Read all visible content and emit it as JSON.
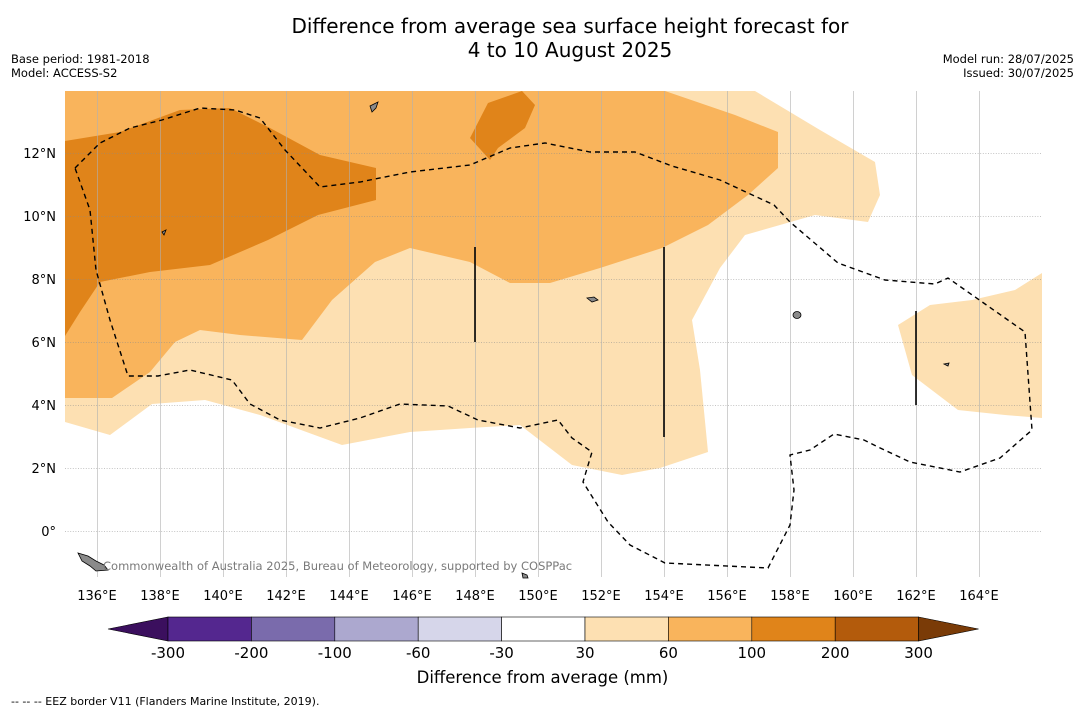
{
  "title_line1": "Difference from average sea surface height forecast for",
  "title_line2": "4 to 10 August 2025",
  "base_period": "Base period: 1981-2018",
  "model": "Model: ACCESS-S2",
  "model_run": "Model run: 28/07/2025",
  "issued": "Issued: 30/07/2025",
  "copyright": "Commonwealth of Australia 2025, Bureau of Meteorology, supported by COSPPac",
  "lat_labels": [
    "12°N",
    "10°N",
    "8°N",
    "6°N",
    "4°N",
    "2°N",
    "0°"
  ],
  "lon_labels": [
    "136°E",
    "138°E",
    "140°E",
    "142°E",
    "144°E",
    "146°E",
    "148°E",
    "150°E",
    "152°E",
    "154°E",
    "156°E",
    "158°E",
    "160°E",
    "162°E",
    "164°E"
  ],
  "colorbar": {
    "label": "Difference from average (mm)",
    "ticks": [
      "-300",
      "-200",
      "-100",
      "-60",
      "-30",
      "30",
      "60",
      "100",
      "200",
      "300"
    ],
    "colors": [
      "#3b0f5e",
      "#54278f",
      "#7a6bac",
      "#aca8cf",
      "#d6d6ea",
      "#ffffff",
      "#fde0b2",
      "#f9b45c",
      "#e0841a",
      "#b35b0c",
      "#7a3b07"
    ]
  },
  "footnote": "-- -- -- EEZ border V11 (Flanders Marine Institute, 2019)."
}
